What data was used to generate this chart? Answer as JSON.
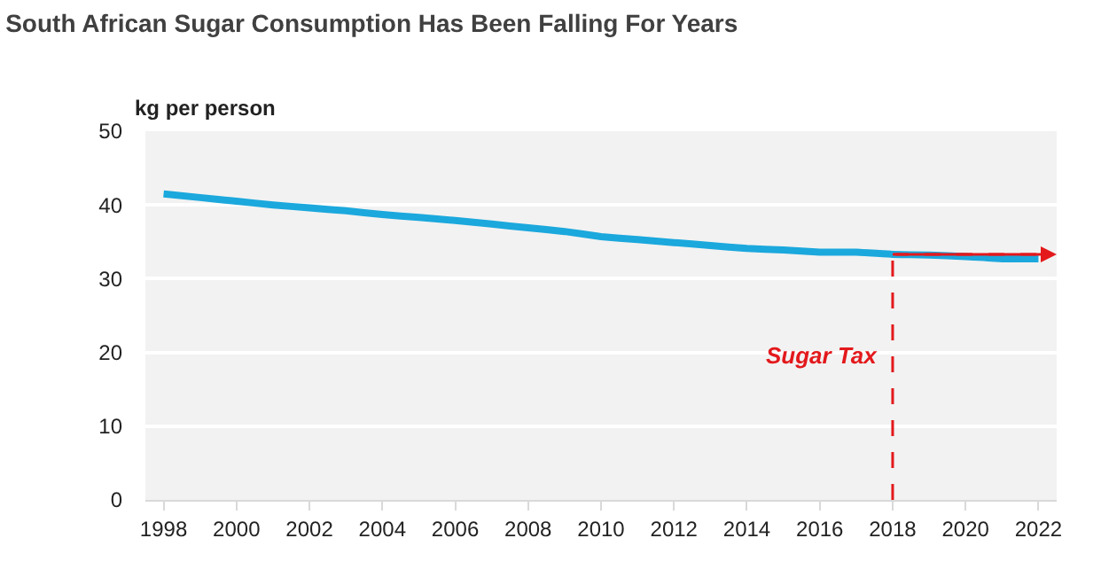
{
  "chart_data": {
    "type": "line",
    "title": "South African Sugar Consumption Has Been Falling For Years",
    "ylabel": "kg per person",
    "x": [
      1998,
      1999,
      2000,
      2001,
      2002,
      2003,
      2004,
      2005,
      2006,
      2007,
      2008,
      2009,
      2010,
      2011,
      2012,
      2013,
      2014,
      2015,
      2016,
      2017,
      2018,
      2019,
      2020,
      2021,
      2022
    ],
    "series": [
      {
        "color": "#1ba8dd",
        "values": [
          41.5,
          41.0,
          40.5,
          40.0,
          39.6,
          39.2,
          38.7,
          38.3,
          37.9,
          37.4,
          36.9,
          36.4,
          35.7,
          35.3,
          34.9,
          34.5,
          34.1,
          33.9,
          33.6,
          33.6,
          33.3,
          33.2,
          33.0,
          32.7,
          32.7
        ]
      }
    ],
    "xlim": [
      1997.5,
      2022.5
    ],
    "xticks": [
      1998,
      2000,
      2002,
      2004,
      2006,
      2008,
      2010,
      2012,
      2014,
      2016,
      2018,
      2020,
      2022
    ],
    "ylim": [
      0,
      50
    ],
    "yticks": [
      0,
      10,
      20,
      30,
      40,
      50
    ],
    "ref_lines": [
      {
        "axis": "x",
        "value": 2018,
        "label": "Sugar Tax",
        "color": "#e3191c",
        "line_style": "dashed"
      }
    ],
    "grid": "y",
    "marker": "none",
    "line_style": "solid"
  }
}
